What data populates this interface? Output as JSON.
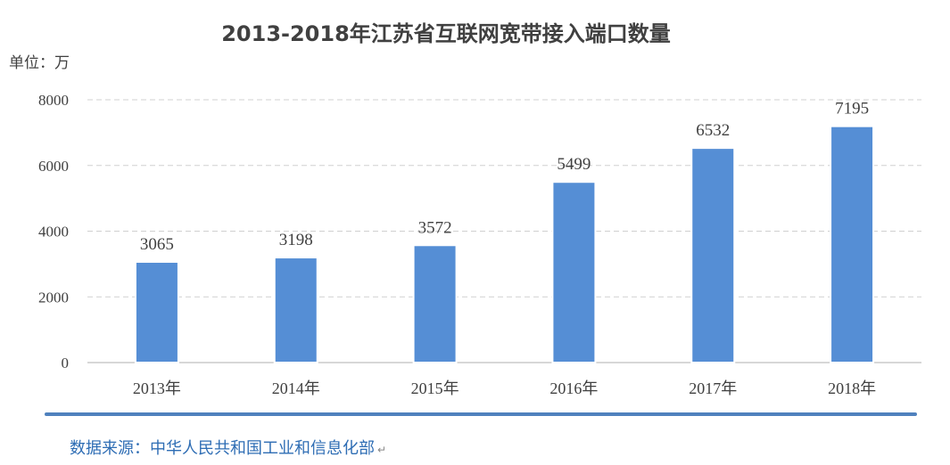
{
  "chart_data": {
    "type": "bar",
    "title": "2013-2018年江苏省互联网宽带接入端口数量",
    "unit_label": "单位：万",
    "categories": [
      "2013年",
      "2014年",
      "2015年",
      "2016年",
      "2017年",
      "2018年"
    ],
    "values": [
      3065,
      3198,
      3572,
      5499,
      6532,
      7195
    ],
    "ylim": [
      0,
      8000
    ],
    "yticks": [
      0,
      2000,
      4000,
      6000,
      8000
    ],
    "grid": true,
    "legend": "none",
    "bar_color": "#558ed5"
  },
  "source": {
    "text": "数据来源：中华人民共和国工业和信息化部",
    "return_mark": "↵",
    "color": "#2e6db4"
  }
}
